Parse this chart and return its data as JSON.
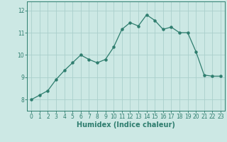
{
  "x": [
    0,
    1,
    2,
    3,
    4,
    5,
    6,
    7,
    8,
    9,
    10,
    11,
    12,
    13,
    14,
    15,
    16,
    17,
    18,
    19,
    20,
    21,
    22,
    23
  ],
  "y": [
    8.0,
    8.2,
    8.4,
    8.9,
    9.3,
    9.65,
    10.0,
    9.8,
    9.65,
    9.8,
    10.35,
    11.15,
    11.45,
    11.3,
    11.8,
    11.55,
    11.15,
    11.25,
    11.0,
    11.0,
    10.15,
    9.1,
    9.05,
    9.05
  ],
  "line_color": "#2e7d6e",
  "marker": "o",
  "markersize": 2.2,
  "linewidth": 0.9,
  "bg_color": "#cce8e4",
  "grid_color": "#aacfcc",
  "xlabel": "Humidex (Indice chaleur)",
  "xlabel_fontsize": 7,
  "tick_color": "#2e7d6e",
  "ylim": [
    7.5,
    12.4
  ],
  "yticks": [
    8,
    9,
    10,
    11,
    12
  ],
  "xticks": [
    0,
    1,
    2,
    3,
    4,
    5,
    6,
    7,
    8,
    9,
    10,
    11,
    12,
    13,
    14,
    15,
    16,
    17,
    18,
    19,
    20,
    21,
    22,
    23
  ],
  "tick_fontsize": 5.5
}
